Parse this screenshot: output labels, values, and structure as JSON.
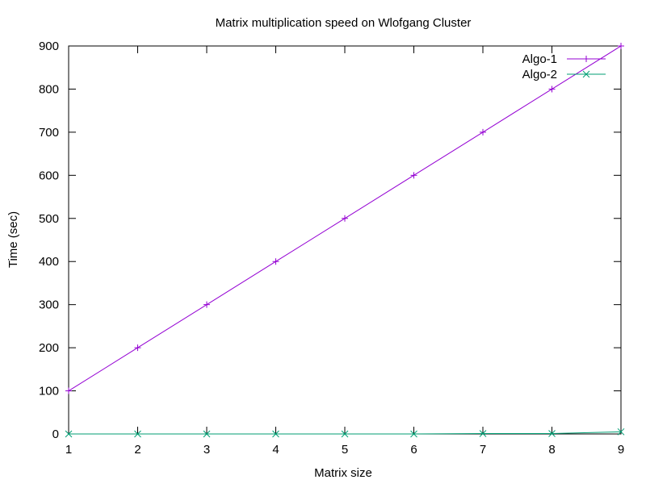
{
  "chart_data": {
    "type": "line",
    "title": "Matrix multiplication speed on Wlofgang Cluster",
    "xlabel": "Matrix size",
    "ylabel": "Time (sec)",
    "xlim": [
      1,
      9
    ],
    "ylim": [
      0,
      900
    ],
    "x_ticks": [
      1,
      2,
      3,
      4,
      5,
      6,
      7,
      8,
      9
    ],
    "y_ticks": [
      0,
      100,
      200,
      300,
      400,
      500,
      600,
      700,
      800,
      900
    ],
    "grid": false,
    "legend_position": "top-right",
    "x": [
      1,
      2,
      3,
      4,
      5,
      6,
      7,
      8,
      9
    ],
    "series": [
      {
        "name": "Algo-1",
        "color": "#9400d3",
        "marker": "plus",
        "values": [
          100,
          200,
          300,
          400,
          500,
          600,
          700,
          800,
          900
        ]
      },
      {
        "name": "Algo-2",
        "color": "#009e73",
        "marker": "cross",
        "values": [
          0,
          0,
          0,
          0,
          0,
          0,
          1,
          1,
          5
        ]
      }
    ]
  }
}
